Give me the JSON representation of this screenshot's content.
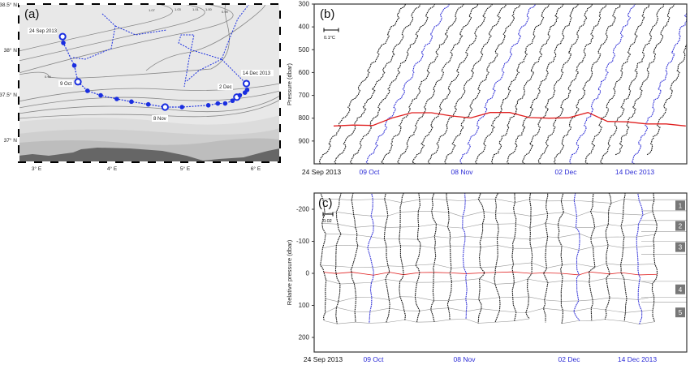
{
  "colors": {
    "track": "#1a2ee0",
    "profile": "#111111",
    "highlight_profile": "#2b2bd6",
    "isopycnal": "#e02020",
    "connector": "#9a9a9a",
    "land": "#666666",
    "sea": "#e8e8e8"
  },
  "chart_data": [
    {
      "type": "scatter",
      "panel_label": "(a)",
      "title": "",
      "xlabel": "",
      "ylabel": "",
      "x_ticks": [
        "3° E",
        "4° E",
        "5° E",
        "6° E"
      ],
      "y_ticks": [
        "38.5° N",
        "38° N",
        "37.5° N",
        "37° N"
      ],
      "xlim": [
        2.76,
        6.33
      ],
      "ylim": [
        36.75,
        38.5
      ],
      "contour_labels": [
        "1.07",
        "1.03",
        "1.01",
        "1.00",
        "0.99",
        "0.99"
      ],
      "track": {
        "lon": [
          3.36,
          3.37,
          3.52,
          3.57,
          3.7,
          3.88,
          4.1,
          4.3,
          4.53,
          4.76,
          4.99,
          5.35,
          5.48,
          5.58,
          5.68,
          5.74,
          5.78,
          5.85,
          5.88,
          5.87
        ],
        "lat": [
          38.14,
          38.07,
          37.82,
          37.64,
          37.54,
          37.49,
          37.45,
          37.42,
          37.39,
          37.36,
          37.36,
          37.38,
          37.4,
          37.4,
          37.43,
          37.47,
          37.49,
          37.52,
          37.55,
          37.62
        ],
        "highlighted_indices": [
          0,
          3,
          9,
          15,
          19
        ]
      },
      "annotations": [
        "24 Sep 2013",
        "9 Oct",
        "8 Nov",
        "2 Dec",
        "14 Dec 2013"
      ]
    },
    {
      "type": "line",
      "panel_label": "(b)",
      "ylabel": "Pressure (dbar)",
      "y_ticks": [
        "300",
        "400",
        "500",
        "600",
        "700",
        "800",
        "900"
      ],
      "ylim": [
        1000,
        300
      ],
      "scale_bar": "0.1°C",
      "x_labels": [
        "24 Sep 2013",
        "09 Oct",
        "08 Nov",
        "02 Dec",
        "14 Dec 2013"
      ],
      "profile_count": 22,
      "highlighted_profiles": [
        3,
        9,
        16,
        20
      ],
      "isopycnal_pressure": [
        834,
        830,
        832,
        799,
        776,
        776,
        790,
        799,
        775,
        775,
        797,
        800,
        798,
        775,
        814,
        816,
        825,
        825,
        834
      ]
    },
    {
      "type": "line",
      "panel_label": "(c)",
      "ylabel": "Relative pressure (dbar)",
      "y_ticks": [
        "-200",
        "-100",
        "0",
        "100",
        "200"
      ],
      "ylim": [
        250,
        -250
      ],
      "scale_bar": "0.02",
      "x_labels": [
        "24 Sep 2013",
        "09 Oct",
        "08 Nov",
        "02 Dec",
        "14 Dec 2013"
      ],
      "layers": [
        "1",
        "2",
        "3",
        "4",
        "5"
      ],
      "profile_count": 22,
      "highlighted_profiles": [
        3,
        9,
        16,
        20
      ]
    }
  ]
}
